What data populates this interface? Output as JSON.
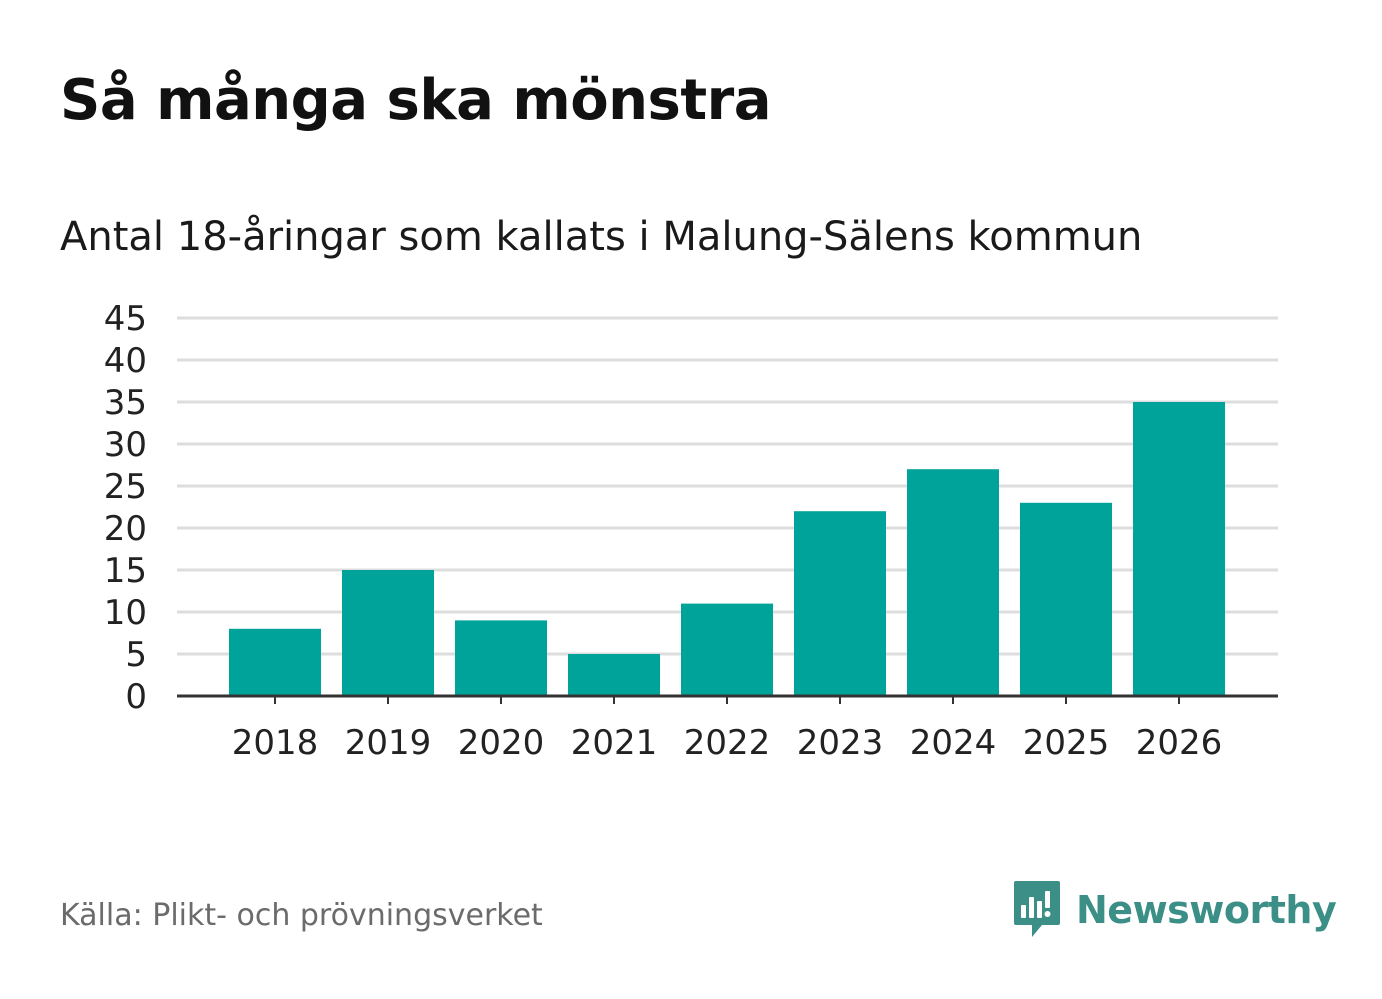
{
  "title": "Så många ska mönstra",
  "subtitle": "Antal 18-åringar som kallats i Malung-Sälens kommun",
  "source": "Källa: Plikt- och prövningsverket",
  "brand": {
    "name": "Newsworthy",
    "icon": "newsworthy-logo-icon",
    "color": "#3b8f87"
  },
  "colors": {
    "bar": "#00a39a",
    "grid": "#dddddd",
    "axis": "#333333",
    "tick_text": "#222222"
  },
  "chart_data": {
    "type": "bar",
    "title": "Så många ska mönstra",
    "subtitle": "Antal 18-åringar som kallats i Malung-Sälens kommun",
    "categories": [
      "2018",
      "2019",
      "2020",
      "2021",
      "2022",
      "2023",
      "2024",
      "2025",
      "2026"
    ],
    "values": [
      8,
      15,
      9,
      5,
      11,
      22,
      27,
      23,
      35
    ],
    "xlabel": "",
    "ylabel": "",
    "ylim": [
      0,
      45
    ],
    "yticks": [
      0,
      5,
      10,
      15,
      20,
      25,
      30,
      35,
      40,
      45
    ],
    "grid": true,
    "legend": "none"
  }
}
